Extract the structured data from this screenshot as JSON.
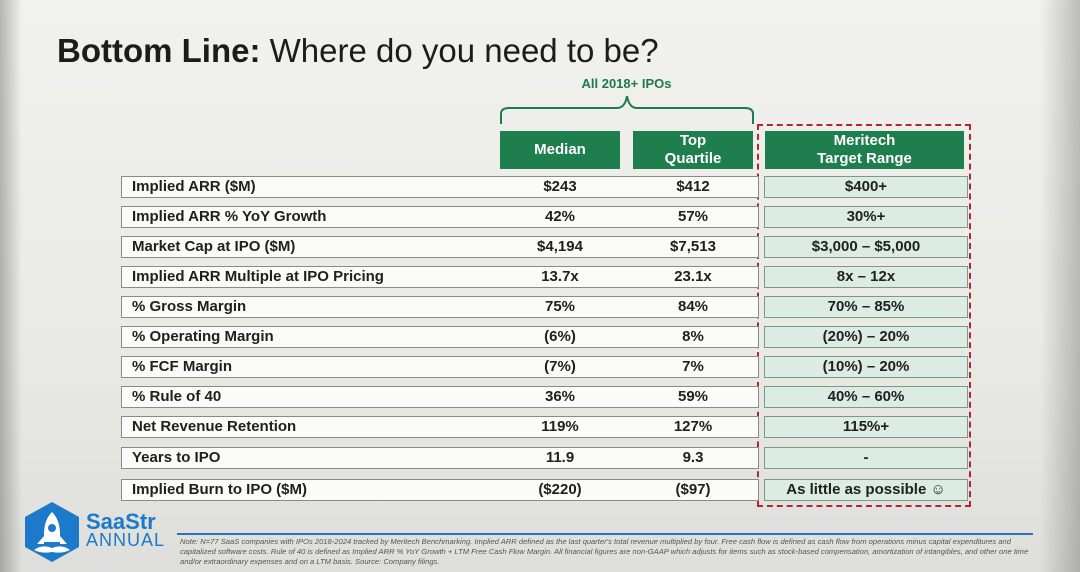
{
  "title": {
    "bold": "Bottom Line:",
    "rest": " Where do you need to be?"
  },
  "group_label": "All 2018+ IPOs",
  "columns": {
    "median": "Median",
    "top_quartile_1": "Top",
    "top_quartile_2": "Quartile",
    "target_1": "Meritech",
    "target_2": "Target Range"
  },
  "rows": [
    {
      "label": "Implied ARR ($M)",
      "median": "$243",
      "top": "$412",
      "target": "$400+"
    },
    {
      "label": "Implied ARR % YoY Growth",
      "median": "42%",
      "top": "57%",
      "target": "30%+"
    },
    {
      "label": "Market Cap at IPO ($M)",
      "median": "$4,194",
      "top": "$7,513",
      "target": "$3,000 – $5,000"
    },
    {
      "label": "Implied ARR Multiple at IPO Pricing",
      "median": "13.7x",
      "top": "23.1x",
      "target": "8x – 12x"
    },
    {
      "label": "% Gross Margin",
      "median": "75%",
      "top": "84%",
      "target": "70% – 85%"
    },
    {
      "label": "% Operating Margin",
      "median": "(6%)",
      "top": "8%",
      "target": "(20%) – 20%"
    },
    {
      "label": "% FCF Margin",
      "median": "(7%)",
      "top": "7%",
      "target": "(10%) – 20%"
    },
    {
      "label": "% Rule of 40",
      "median": "36%",
      "top": "59%",
      "target": "40% – 60%"
    },
    {
      "label": "Net Revenue Retention",
      "median": "119%",
      "top": "127%",
      "target": "115%+"
    },
    {
      "label": "Years to IPO",
      "median": "11.9",
      "top": "9.3",
      "target": "-"
    },
    {
      "label": "Implied Burn to IPO ($M)",
      "median": "($220)",
      "top": "($97)",
      "target": "As little as possible ☺"
    }
  ],
  "logo": {
    "line1": "SaaStr",
    "line2": "ANNUAL"
  },
  "note": "Note: N=77 SaaS companies with IPOs 2018-2024 tracked by Meritech Benchmarking. Implied ARR defined as the last quarter's total revenue multiplied by four. Free cash flow is defined as cash flow from operations minus capital expenditures and capitalized software costs. Rule of 40 is defined as Implied ARR % YoY Growth + LTM Free Cash Flow Margin. All financial figures are non-GAAP which adjusts for items such as stock-based compensation, amortization of intangibles, and other one time and/or extraordinary expenses and on a LTM basis. Source: Company filings.",
  "colors": {
    "header_green": "#1e7e4e",
    "target_fill": "#dcebe3",
    "dashed_red": "#b3262d",
    "logo_blue": "#1d79c9"
  }
}
